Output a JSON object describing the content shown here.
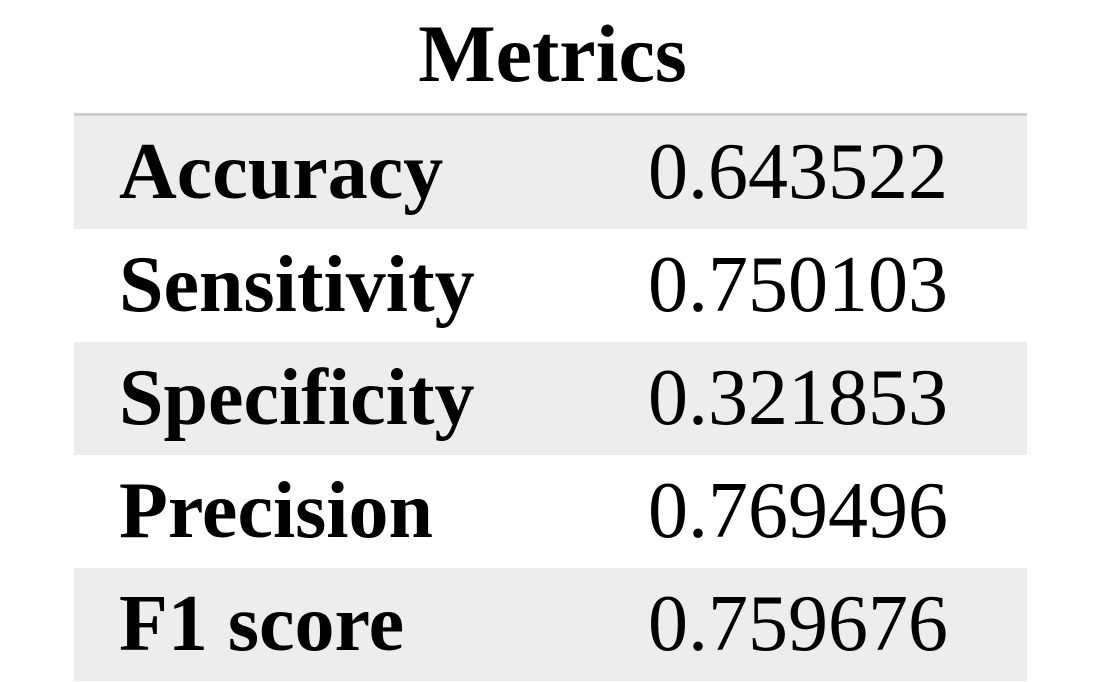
{
  "title": "Metrics",
  "rows": [
    {
      "label": "Accuracy",
      "value": "0.643522"
    },
    {
      "label": "Sensitivity",
      "value": "0.750103"
    },
    {
      "label": "Specificity",
      "value": "0.321853"
    },
    {
      "label": "Precision",
      "value": "0.769496"
    },
    {
      "label": "F1 score",
      "value": "0.759676"
    }
  ],
  "colors": {
    "shaded_row": "#ededed",
    "rule": "#cfcfcf",
    "text": "#000000"
  }
}
